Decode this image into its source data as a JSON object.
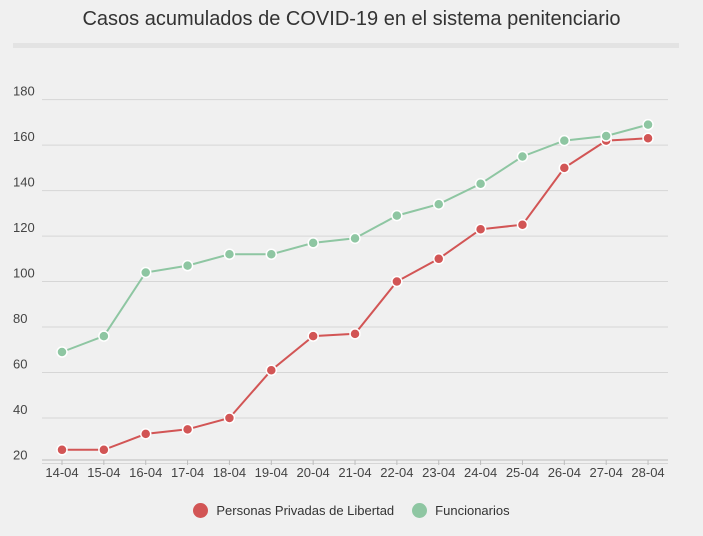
{
  "chart_data": {
    "type": "line",
    "title": "Casos acumulados de COVID-19 en el sistema penitenciario",
    "xlabel": "",
    "ylabel": "",
    "categories": [
      "14-04",
      "15-04",
      "16-04",
      "17-04",
      "18-04",
      "19-04",
      "20-04",
      "21-04",
      "22-04",
      "23-04",
      "24-04",
      "25-04",
      "26-04",
      "27-04",
      "28-04"
    ],
    "yticks": [
      20,
      40,
      60,
      80,
      100,
      120,
      140,
      160,
      180
    ],
    "ylim": [
      18,
      186
    ],
    "grid": true,
    "legend_position": "bottom-center",
    "series": [
      {
        "name": "Personas Privadas de Libertad",
        "color": "#d25555",
        "values": [
          26,
          26,
          33,
          35,
          40,
          61,
          76,
          77,
          100,
          110,
          123,
          125,
          150,
          162,
          163
        ]
      },
      {
        "name": "Funcionarios",
        "color": "#8ec6a2",
        "values": [
          69,
          76,
          104,
          107,
          112,
          112,
          117,
          119,
          129,
          134,
          143,
          155,
          162,
          164,
          169
        ]
      }
    ]
  }
}
